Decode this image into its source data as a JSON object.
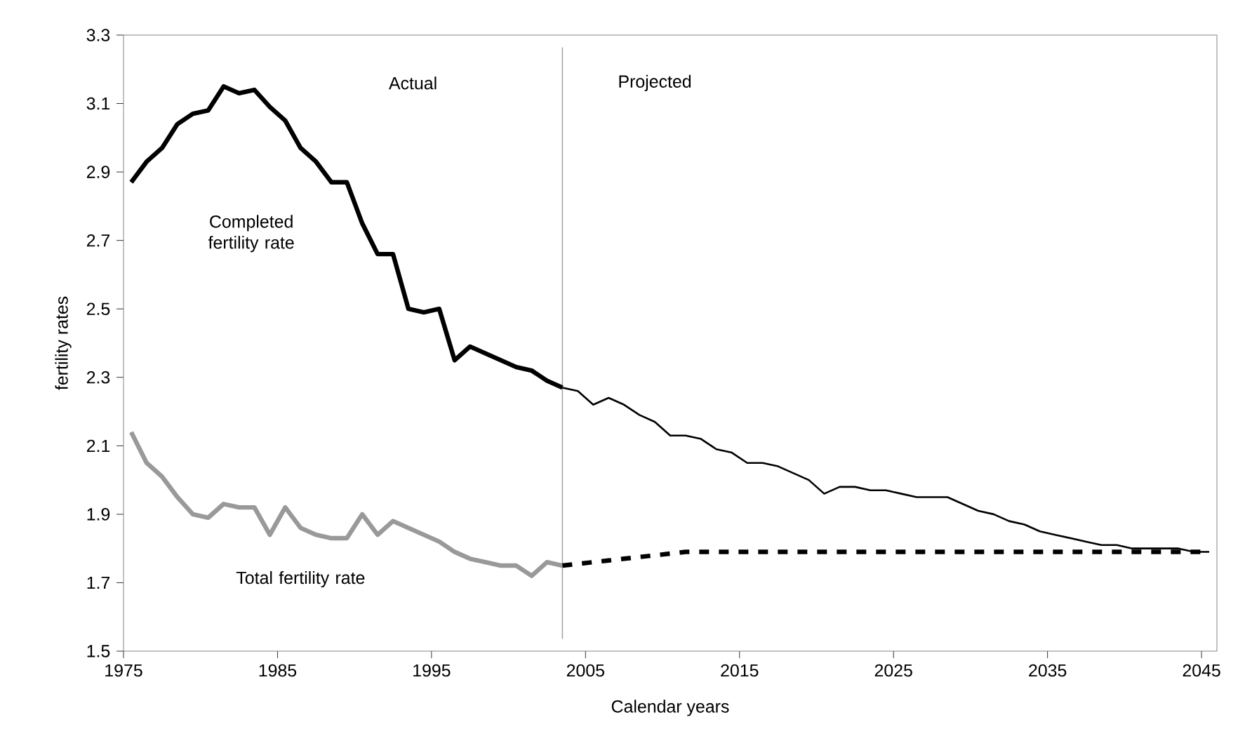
{
  "chart_data": {
    "type": "line",
    "xlabel": "Calendar years",
    "ylabel": "fertility rates",
    "xlim": [
      1975,
      2046
    ],
    "ylim": [
      1.5,
      3.3
    ],
    "xticks": [
      1975,
      1985,
      1995,
      2005,
      2015,
      2025,
      2035,
      2045
    ],
    "yticks": [
      1.5,
      1.7,
      1.9,
      2.1,
      2.3,
      2.5,
      2.7,
      2.9,
      3.1,
      3.3
    ],
    "grid": false,
    "legend": false,
    "marker": "none",
    "ref_lines": [
      {
        "axis": "x",
        "value": 2003.5,
        "color": "#a6a6a6"
      }
    ],
    "annotations": [
      "Actual",
      "Projected"
    ],
    "series": [
      {
        "name": "Completed fertility rate",
        "color": "#000000",
        "line_style": "solid",
        "x": [
          1975.5,
          1976.5,
          1977.5,
          1978.5,
          1979.5,
          1980.5,
          1981.5,
          1982.5,
          1983.5,
          1984.5,
          1985.5,
          1986.5,
          1987.5,
          1988.5,
          1989.5,
          1990.5,
          1991.5,
          1992.5,
          1993.5,
          1994.5,
          1995.5,
          1996.5,
          1997.5,
          1998.5,
          1999.5,
          2000.5,
          2001.5,
          2002.5,
          2003.5
        ],
        "values": [
          2.87,
          2.93,
          2.97,
          3.04,
          3.07,
          3.08,
          3.15,
          3.13,
          3.14,
          3.09,
          3.05,
          2.97,
          2.93,
          2.87,
          2.87,
          2.75,
          2.66,
          2.66,
          2.5,
          2.49,
          2.5,
          2.35,
          2.39,
          2.37,
          2.35,
          2.33,
          2.32,
          2.29,
          2.27
        ]
      },
      {
        "color": "#000000",
        "line_style": "solid",
        "x": [
          2003.5,
          2004.5,
          2005.5,
          2006.5,
          2007.5,
          2008.5,
          2009.5,
          2010.5,
          2011.5,
          2012.5,
          2013.5,
          2014.5,
          2015.5,
          2016.5,
          2017.5,
          2018.5,
          2019.5,
          2020.5,
          2021.5,
          2022.5,
          2023.5,
          2024.5,
          2025.5,
          2026.5,
          2027.5,
          2028.5,
          2029.5,
          2030.5,
          2031.5,
          2032.5,
          2033.5,
          2034.5,
          2035.5,
          2036.5,
          2037.5,
          2038.5,
          2039.5,
          2040.5,
          2041.5,
          2042.5,
          2043.5,
          2044.5,
          2045.5
        ],
        "values": [
          2.27,
          2.26,
          2.22,
          2.24,
          2.22,
          2.19,
          2.17,
          2.13,
          2.13,
          2.12,
          2.09,
          2.08,
          2.05,
          2.05,
          2.04,
          2.02,
          2.0,
          1.96,
          1.98,
          1.98,
          1.97,
          1.97,
          1.96,
          1.95,
          1.95,
          1.95,
          1.93,
          1.91,
          1.9,
          1.88,
          1.87,
          1.85,
          1.84,
          1.83,
          1.82,
          1.81,
          1.81,
          1.8,
          1.8,
          1.8,
          1.8,
          1.79,
          1.79
        ]
      },
      {
        "name": "Total fertility rate",
        "color": "#999999",
        "line_style": "solid",
        "x": [
          1975.5,
          1976.5,
          1977.5,
          1978.5,
          1979.5,
          1980.5,
          1981.5,
          1982.5,
          1983.5,
          1984.5,
          1985.5,
          1986.5,
          1987.5,
          1988.5,
          1989.5,
          1990.5,
          1991.5,
          1992.5,
          1993.5,
          1994.5,
          1995.5,
          1996.5,
          1997.5,
          1998.5,
          1999.5,
          2000.5,
          2001.5,
          2002.5,
          2003.5
        ],
        "values": [
          2.14,
          2.05,
          2.01,
          1.95,
          1.9,
          1.89,
          1.93,
          1.92,
          1.92,
          1.84,
          1.92,
          1.86,
          1.84,
          1.83,
          1.83,
          1.9,
          1.84,
          1.88,
          1.86,
          1.84,
          1.82,
          1.79,
          1.77,
          1.76,
          1.75,
          1.75,
          1.72,
          1.76,
          1.75
        ]
      },
      {
        "color": "#000000",
        "line_style": "dashed",
        "x": [
          2003.5,
          2004.5,
          2005.5,
          2006.5,
          2007.5,
          2008.5,
          2009.5,
          2010.5,
          2011.5,
          2012.5,
          2013.5,
          2045.5
        ],
        "values": [
          1.75,
          1.755,
          1.76,
          1.765,
          1.77,
          1.775,
          1.78,
          1.785,
          1.79,
          1.79,
          1.79,
          1.79
        ]
      }
    ]
  }
}
